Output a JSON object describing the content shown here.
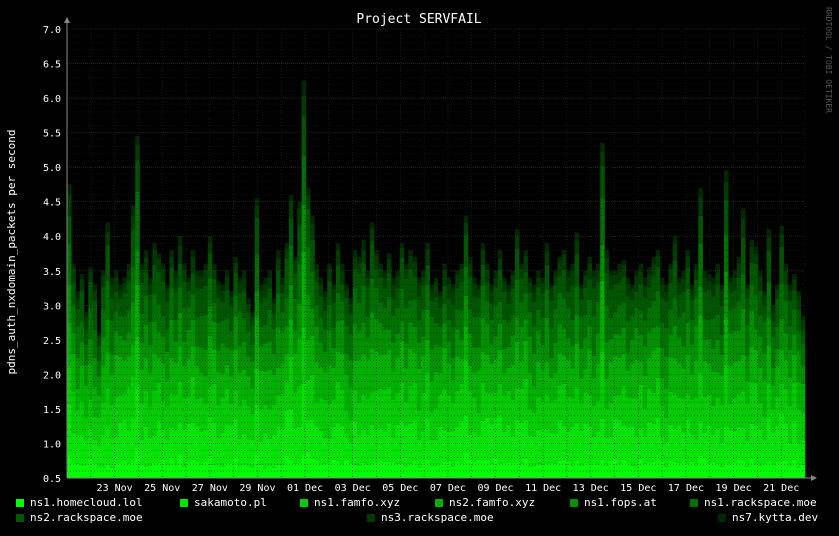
{
  "chart_data": {
    "type": "area",
    "stacked": true,
    "title": "Project SERVFAIL",
    "ylabel": "pdns_auth_nxdomain_packets per second",
    "xlabel": "",
    "watermark": "RRDTOOL / TOBI OETIKER",
    "ylim": [
      0.5,
      7.0
    ],
    "yticks": [
      "0.5",
      "1.0",
      "1.5",
      "2.0",
      "2.5",
      "3.0",
      "3.5",
      "4.0",
      "4.5",
      "5.0",
      "5.5",
      "6.0",
      "6.5",
      "7.0"
    ],
    "xticks": [
      "23 Nov",
      "25 Nov",
      "27 Nov",
      "29 Nov",
      "01 Dec",
      "03 Dec",
      "05 Dec",
      "07 Dec",
      "09 Dec",
      "11 Dec",
      "13 Dec",
      "15 Dec",
      "17 Dec",
      "19 Dec",
      "21 Dec"
    ],
    "x_start": "2022-11-21",
    "x_end": "2022-12-22",
    "grid": true,
    "legend_position": "bottom",
    "colors": {
      "background": "#000000",
      "grid": "#2a2a2a",
      "axis": "#888888",
      "text": "#ffffff"
    },
    "series": [
      {
        "name": "ns1.homecloud.lol",
        "color": "#00ff00",
        "mean": 0.25
      },
      {
        "name": "sakamoto.pl",
        "color": "#00e600",
        "mean": 0.55
      },
      {
        "name": "ns1.famfo.xyz",
        "color": "#00cc00",
        "mean": 0.55
      },
      {
        "name": "ns2.famfo.xyz",
        "color": "#00b000",
        "mean": 0.55
      },
      {
        "name": "ns1.fops.at",
        "color": "#009000",
        "mean": 0.45
      },
      {
        "name": "ns1.rackspace.moe",
        "color": "#007000",
        "mean": 0.45
      },
      {
        "name": "ns2.rackspace.moe",
        "color": "#005500",
        "mean": 0.4
      },
      {
        "name": "ns3.rackspace.moe",
        "color": "#003c00",
        "mean": 0.2
      },
      {
        "name": "ns7.kytta.dev",
        "color": "#002800",
        "mean": 0.1
      }
    ],
    "totals": [
      4.75,
      3.6,
      3.2,
      3.45,
      2.9,
      3.55,
      3.3,
      2.6,
      3.5,
      4.2,
      3.4,
      3.5,
      3.3,
      3.4,
      3.6,
      4.45,
      5.45,
      3.6,
      3.8,
      3.4,
      3.9,
      3.75,
      3.6,
      3.3,
      3.8,
      3.5,
      4.0,
      3.6,
      3.4,
      3.8,
      3.5,
      3.5,
      3.6,
      4.0,
      3.6,
      3.35,
      3.3,
      3.5,
      3.2,
      3.7,
      3.4,
      3.5,
      3.1,
      2.9,
      4.55,
      3.3,
      3.4,
      3.5,
      3.1,
      3.8,
      3.4,
      3.9,
      4.6,
      3.7,
      4.5,
      6.25,
      4.7,
      4.3,
      3.6,
      3.4,
      3.2,
      3.6,
      3.3,
      3.9,
      3.6,
      3.3,
      3.1,
      3.8,
      3.7,
      3.95,
      3.5,
      4.2,
      3.8,
      3.6,
      3.5,
      3.75,
      3.4,
      3.5,
      3.9,
      3.6,
      3.8,
      3.7,
      3.4,
      3.5,
      3.9,
      3.3,
      3.4,
      3.2,
      3.6,
      3.4,
      3.3,
      3.5,
      3.6,
      4.3,
      3.7,
      3.4,
      3.3,
      3.9,
      3.6,
      3.3,
      3.5,
      3.8,
      3.4,
      3.3,
      3.5,
      4.1,
      3.6,
      3.8,
      3.4,
      3.3,
      3.5,
      3.4,
      3.9,
      3.3,
      3.5,
      3.7,
      3.8,
      3.5,
      3.6,
      4.05,
      3.3,
      3.5,
      3.7,
      3.5,
      3.6,
      5.35,
      3.8,
      3.5,
      3.5,
      3.6,
      3.65,
      3.4,
      3.3,
      3.5,
      3.6,
      3.4,
      3.55,
      3.7,
      3.8,
      3.4,
      3.3,
      3.6,
      4.0,
      3.4,
      3.5,
      3.8,
      3.3,
      3.6,
      4.7,
      3.5,
      3.45,
      3.4,
      3.6,
      3.3,
      4.95,
      3.4,
      3.5,
      3.7,
      4.4,
      3.3,
      3.95,
      3.85,
      3.5,
      3.2,
      4.1,
      3.0,
      3.3,
      4.15,
      3.6,
      3.3,
      3.45,
      3.2,
      2.85
    ]
  }
}
